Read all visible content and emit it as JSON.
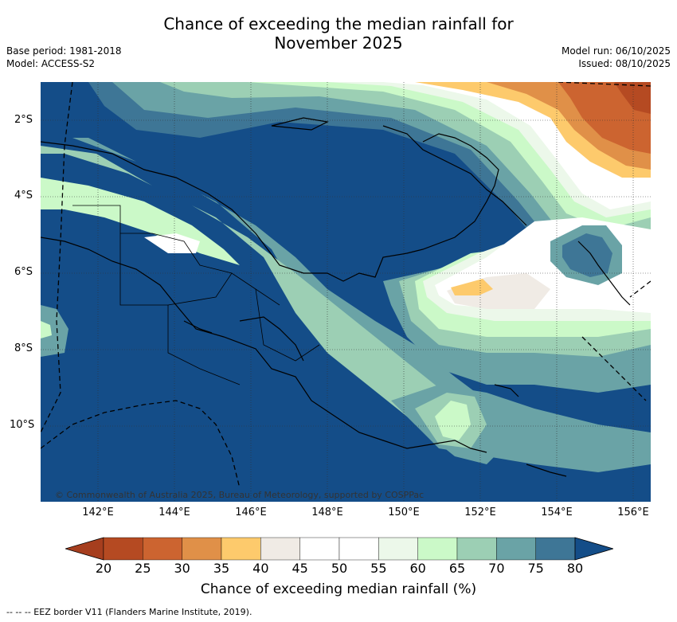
{
  "header": {
    "title_line1": "Chance of exceeding the median rainfall for",
    "title_line2": "November 2025",
    "base_period": "Base period: 1981-2018",
    "model": "Model: ACCESS-S2",
    "model_run": "Model run: 06/10/2025",
    "issued": "Issued: 08/10/2025"
  },
  "axes": {
    "lat_labels": [
      "2°S",
      "4°S",
      "6°S",
      "8°S",
      "10°S"
    ],
    "lon_labels": [
      "142°E",
      "144°E",
      "146°E",
      "148°E",
      "150°E",
      "152°E",
      "154°E",
      "156°E"
    ]
  },
  "map": {
    "credit": "© Commonwealth of Australia 2025, Bureau of Meteorology, supported by COSPPac"
  },
  "legend": {
    "ticks": [
      "20",
      "25",
      "30",
      "35",
      "40",
      "45",
      "50",
      "55",
      "60",
      "65",
      "70",
      "75",
      "80"
    ],
    "title": "Chance of exceeding median rainfall (%)",
    "colors": [
      "#a63e1e",
      "#b54a22",
      "#cc6430",
      "#e09048",
      "#fdca6c",
      "#f0ebe5",
      "#ffffff",
      "#ffffff",
      "#ecf8ea",
      "#cbf9c8",
      "#9ccfb4",
      "#6aa3a6",
      "#3e7696",
      "#144d88"
    ]
  },
  "footnote": "--  --  -- EEZ border V11 (Flanders Marine Institute, 2019)."
}
